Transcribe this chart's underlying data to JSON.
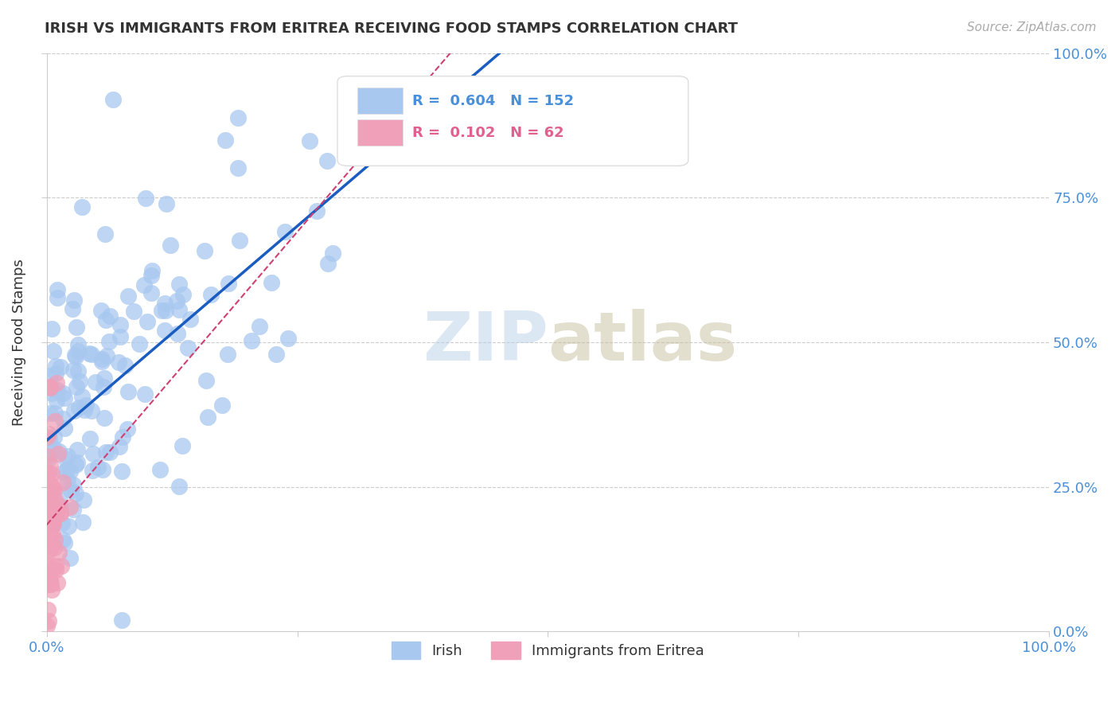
{
  "title": "IRISH VS IMMIGRANTS FROM ERITREA RECEIVING FOOD STAMPS CORRELATION CHART",
  "source": "Source: ZipAtlas.com",
  "ylabel": "Receiving Food Stamps",
  "legend_irish_R": "0.604",
  "legend_irish_N": "152",
  "legend_eritrea_R": "0.102",
  "legend_eritrea_N": "62",
  "legend_label_irish": "Irish",
  "legend_label_eritrea": "Immigrants from Eritrea",
  "irish_color": "#a8c8f0",
  "eritrea_color": "#f0a0b8",
  "irish_line_color": "#1a5cbf",
  "eritrea_line_color": "#d04070",
  "background_color": "#ffffff"
}
